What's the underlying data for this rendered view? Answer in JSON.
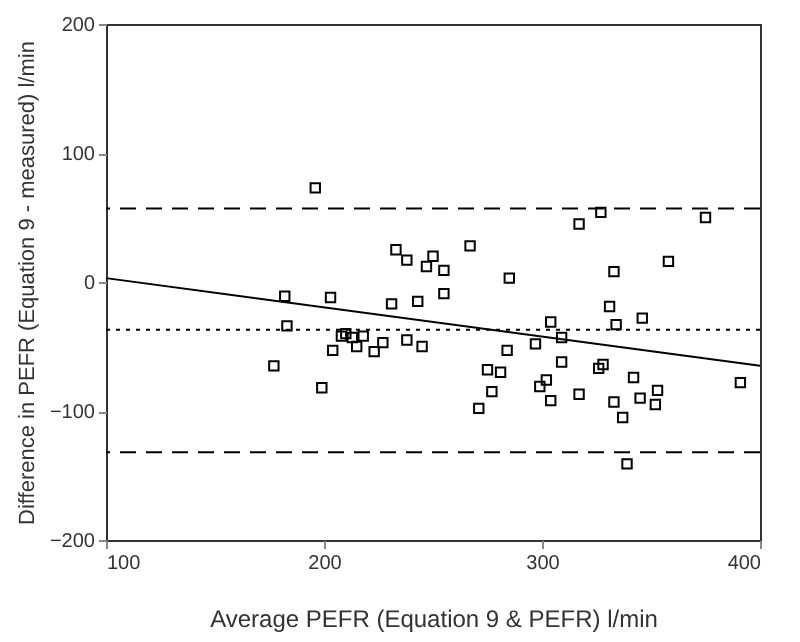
{
  "chart_data": {
    "type": "scatter",
    "xlabel": "Average PEFR (Equation 9 & PEFR) l/min",
    "ylabel": "Difference in PEFR (Equation 9 - measured) l/min",
    "xlim": [
      100,
      400
    ],
    "xticks": [
      100,
      200,
      300,
      400
    ],
    "ylim": [
      -200,
      200
    ],
    "yticks": [
      -200,
      -100,
      0,
      100,
      200
    ],
    "grid": false,
    "series": [
      {
        "color": "#000000",
        "marker": "square",
        "x": [
          196,
          233,
          238,
          247,
          250,
          255,
          317,
          327,
          375,
          267,
          285,
          333,
          358,
          182,
          203,
          231,
          243,
          255,
          183,
          208,
          210,
          213,
          218,
          215,
          204,
          223,
          227,
          238,
          245,
          177,
          199,
          331,
          334,
          346,
          304,
          309,
          284,
          297,
          309,
          328,
          326,
          275,
          281,
          342,
          302,
          299,
          277,
          353,
          317,
          345,
          304,
          333,
          352,
          271,
          337,
          391,
          339
        ],
        "values": [
          73,
          25,
          17,
          12,
          20,
          9,
          45,
          54,
          50,
          28,
          3,
          8,
          16,
          -11,
          -12,
          -17,
          -15,
          -9,
          -34,
          -42,
          -40,
          -43,
          -42,
          -50,
          -53,
          -54,
          -47,
          -45,
          -50,
          -65,
          -82,
          -19,
          -33,
          -28,
          -31,
          -43,
          -53,
          -48,
          -62,
          -64,
          -67,
          -68,
          -70,
          -74,
          -76,
          -81,
          -85,
          -84,
          -87,
          -90,
          -92,
          -93,
          -95,
          -98,
          -105,
          -78,
          -141
        ]
      },
      {
        "type": "line",
        "color": "#000000",
        "x": [
          100,
          400
        ],
        "values": [
          3,
          -65
        ],
        "line_style": "solid"
      }
    ],
    "ref_lines": [
      {
        "axis": "y",
        "value": 57,
        "line_style": "dashed",
        "color": "#000000"
      },
      {
        "axis": "y",
        "value": -37,
        "line_style": "dotted",
        "color": "#000000"
      },
      {
        "axis": "y",
        "value": -132,
        "line_style": "dashed",
        "color": "#000000"
      }
    ]
  }
}
